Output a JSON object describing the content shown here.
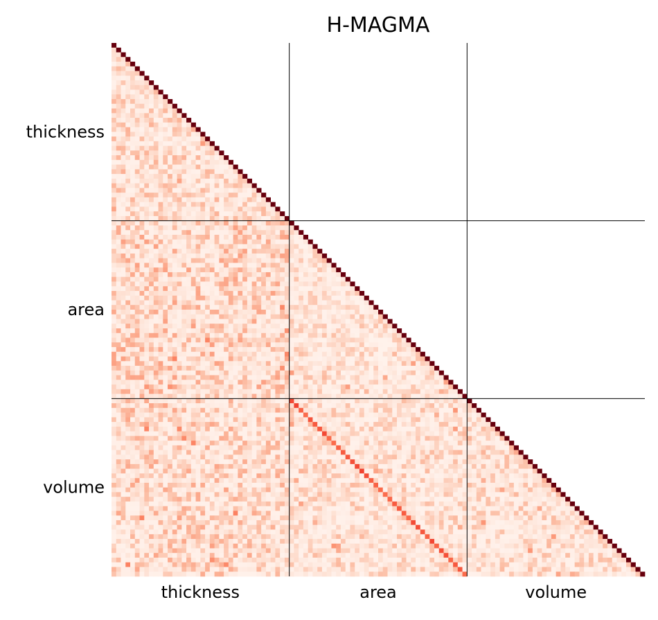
{
  "chart_data": {
    "type": "heatmap",
    "title": "H-MAGMA",
    "shape": "lower-triangular",
    "n_cells": 114,
    "block_size": 38,
    "groups": [
      "thickness",
      "area",
      "volume"
    ],
    "x_tick_labels": [
      "thickness",
      "area",
      "volume"
    ],
    "y_tick_labels": [
      "thickness",
      "area",
      "volume"
    ],
    "colormap": "Reds",
    "value_range": [
      0,
      1
    ],
    "diagonal_value": 1.0,
    "block_mean_values": {
      "thickness-thickness": 0.15,
      "area-thickness": 0.18,
      "area-area": 0.13,
      "volume-thickness": 0.17,
      "volume-area": 0.14,
      "volume-volume": 0.14
    },
    "area_volume_matched_diagonal_mean": 0.55,
    "block_separator_lines": true,
    "grid": false
  }
}
